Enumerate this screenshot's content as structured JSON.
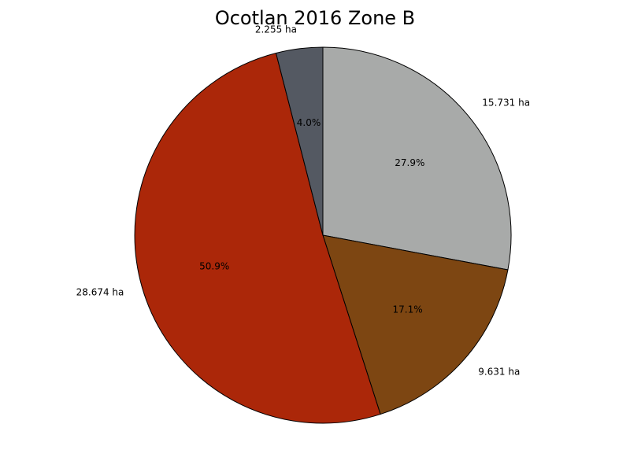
{
  "chart_data": {
    "type": "pie",
    "title": "Ocotlan 2016 Zone B",
    "unit": "ha",
    "start_angle_deg": 90,
    "direction": "clockwise",
    "slices": [
      {
        "label": "15.731 ha",
        "value": 15.731,
        "percent_label": "27.9%",
        "color": "#a8aaa9"
      },
      {
        "label": "9.631 ha",
        "value": 9.631,
        "percent_label": "17.1%",
        "color": "#7d4612"
      },
      {
        "label": "28.674 ha",
        "value": 28.674,
        "percent_label": "50.9%",
        "color": "#ab2709"
      },
      {
        "label": "2.255 ha",
        "value": 2.255,
        "percent_label": "4.0%",
        "color": "#545962"
      }
    ]
  }
}
